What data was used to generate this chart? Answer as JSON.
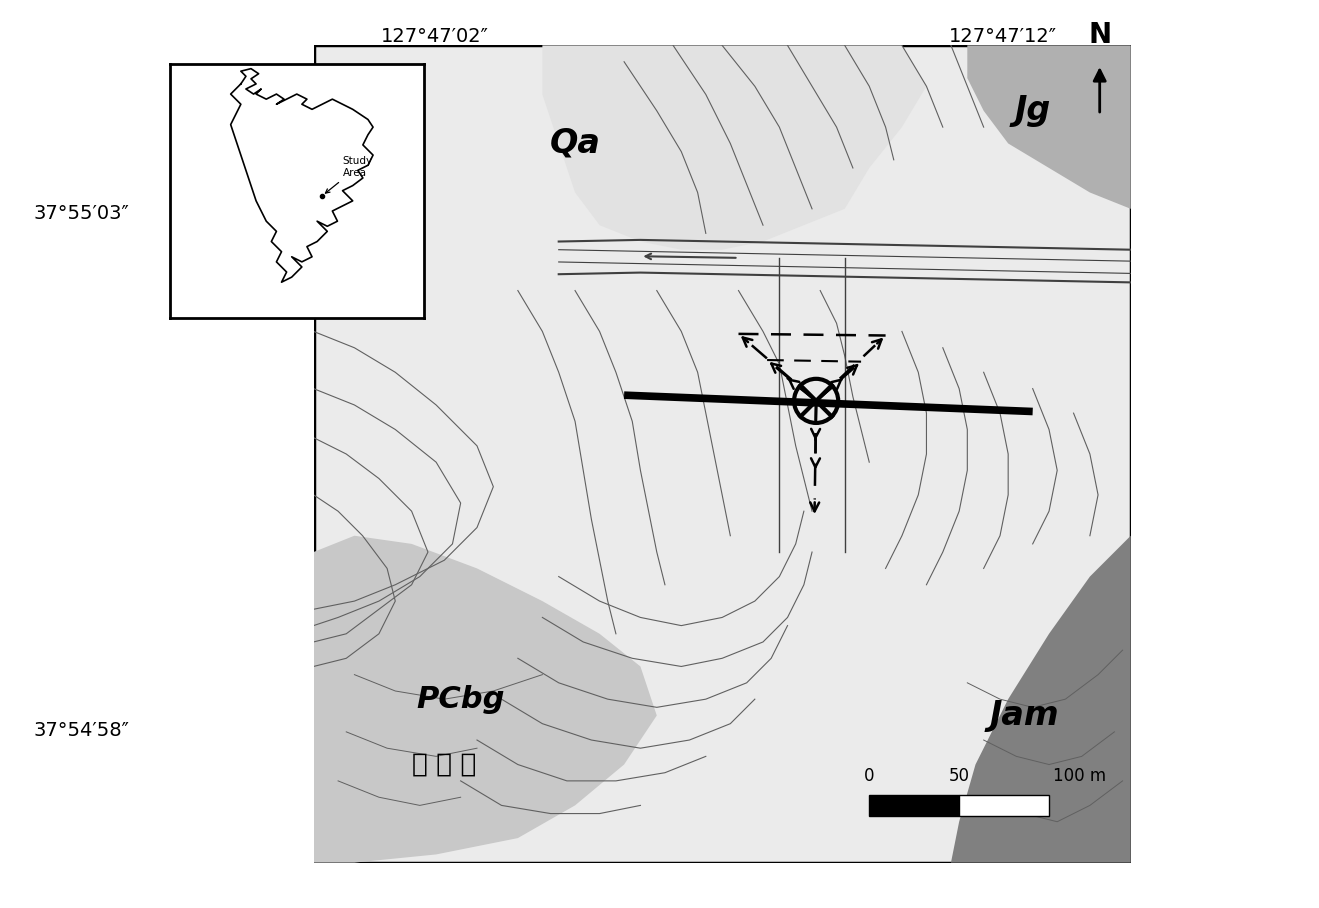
{
  "lon_left": "127°47′02″",
  "lon_right": "127°47′12″",
  "lat_top": "37°55′03″",
  "lat_bottom": "37°54′58″",
  "Qa_label": "Qa",
  "Jg_label": "Jg",
  "PCbg_label": "PCbg",
  "Jam_label": "Jam",
  "jinnaeri": "지 내 리",
  "north_label": "N",
  "study_area_label": "Study\nArea",
  "bg_light": "#ebebeb",
  "bg_white": "#f5f5f5",
  "jg_color": "#b0b0b0",
  "pcbg_color": "#c8c8c8",
  "jam_color": "#808080",
  "contour_color": "#606060",
  "road_color": "#404040"
}
